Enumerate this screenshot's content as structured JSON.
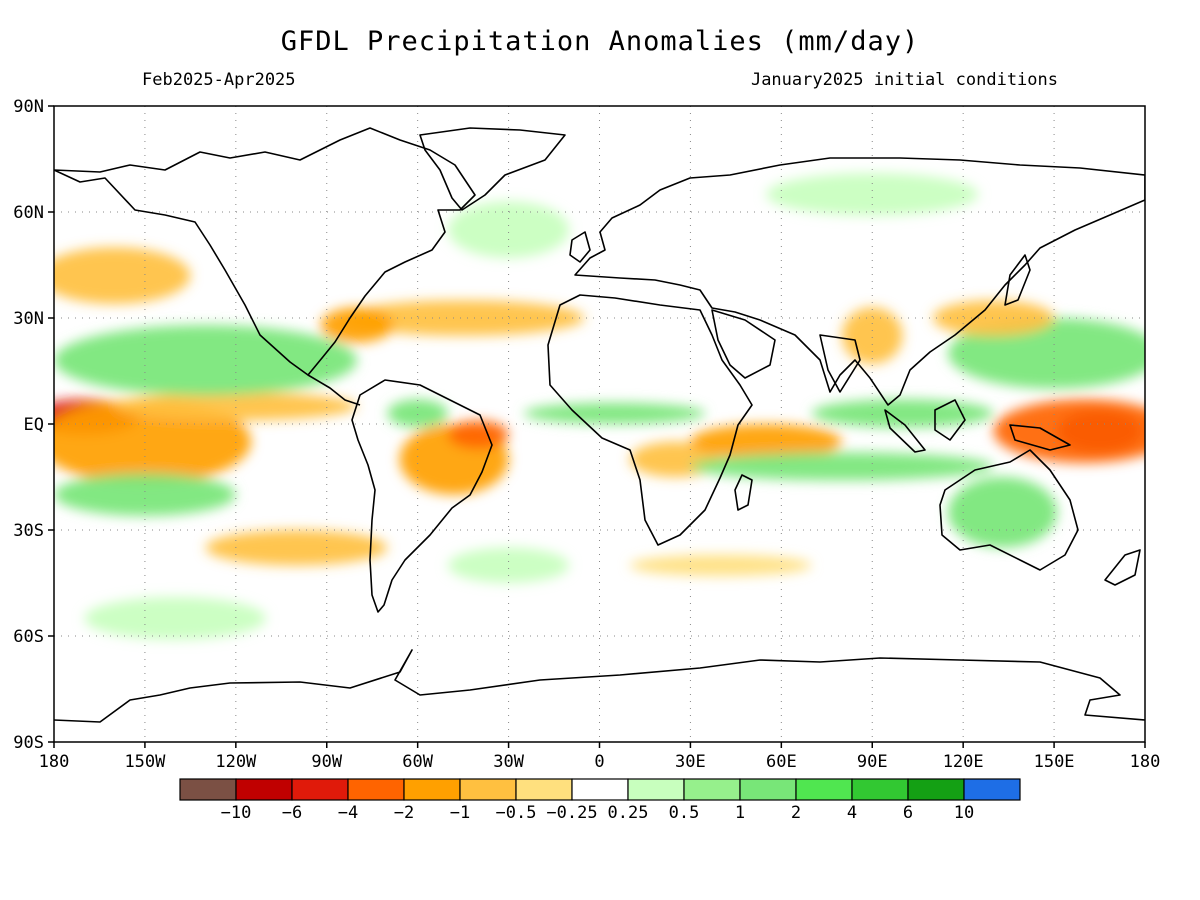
{
  "title": "GFDL Precipitation Anomalies (mm/day)",
  "period": "Feb2025-Apr2025",
  "initial_conditions": "January2025 initial conditions",
  "map": {
    "projection": "equirectangular",
    "lon_range": [
      -180,
      180
    ],
    "lat_range": [
      -90,
      90
    ],
    "grid": "dotted every 30 degrees",
    "lat_labels": [
      "90N",
      "60N",
      "30N",
      "EQ",
      "30S",
      "60S",
      "90S"
    ],
    "lon_labels": [
      "180",
      "150W",
      "120W",
      "90W",
      "60W",
      "30W",
      "0",
      "30E",
      "60E",
      "90E",
      "120E",
      "150E",
      "180"
    ]
  },
  "colorbar": {
    "colors": [
      "#7b5044",
      "#c00000",
      "#e01a0a",
      "#ff6400",
      "#ffa000",
      "#ffc040",
      "#ffe07e",
      "#ffffff",
      "#c8ffbe",
      "#96f08c",
      "#78e678",
      "#50e650",
      "#32c832",
      "#14a014",
      "#1e6ee6"
    ],
    "labels": [
      "-10",
      "-6",
      "-4",
      "-2",
      "-1",
      "-0.5",
      "-0.25",
      "0.25",
      "0.5",
      "1",
      "2",
      "4",
      "6",
      "10"
    ]
  },
  "anomaly_regions": [
    {
      "lon": 165,
      "lat": -2,
      "rx": 14,
      "ry": 6,
      "value": -6
    },
    {
      "lon": 160,
      "lat": -2,
      "rx": 30,
      "ry": 9,
      "value": -2
    },
    {
      "lon": -170,
      "lat": 2,
      "rx": 18,
      "ry": 5,
      "value": -4
    },
    {
      "lon": -150,
      "lat": -5,
      "rx": 35,
      "ry": 12,
      "value": -1.5
    },
    {
      "lon": -120,
      "lat": 5,
      "rx": 40,
      "ry": 4,
      "value": -0.75
    },
    {
      "lon": -130,
      "lat": 18,
      "rx": 50,
      "ry": 10,
      "value": 1.5
    },
    {
      "lon": -150,
      "lat": -20,
      "rx": 30,
      "ry": 6,
      "value": 1.5
    },
    {
      "lon": -100,
      "lat": -35,
      "rx": 30,
      "ry": 5,
      "value": -0.75
    },
    {
      "lon": -140,
      "lat": -55,
      "rx": 30,
      "ry": 6,
      "value": 0.4
    },
    {
      "lon": -160,
      "lat": 42,
      "rx": 25,
      "ry": 8,
      "value": -0.75
    },
    {
      "lon": -48,
      "lat": -10,
      "rx": 18,
      "ry": 10,
      "value": -1.2
    },
    {
      "lon": -40,
      "lat": -3,
      "rx": 10,
      "ry": 4,
      "value": -2
    },
    {
      "lon": -60,
      "lat": 3,
      "rx": 10,
      "ry": 4,
      "value": 1.2
    },
    {
      "lon": -45,
      "lat": 30,
      "rx": 40,
      "ry": 5,
      "value": -0.75
    },
    {
      "lon": -80,
      "lat": 28,
      "rx": 12,
      "ry": 5,
      "value": -1.2
    },
    {
      "lon": -30,
      "lat": 55,
      "rx": 20,
      "ry": 8,
      "value": 0.5
    },
    {
      "lon": 5,
      "lat": 3,
      "rx": 30,
      "ry": 3,
      "value": 1.2
    },
    {
      "lon": 25,
      "lat": -10,
      "rx": 15,
      "ry": 5,
      "value": -0.75
    },
    {
      "lon": 55,
      "lat": -5,
      "rx": 25,
      "ry": 5,
      "value": -1.5
    },
    {
      "lon": 100,
      "lat": 3,
      "rx": 30,
      "ry": 4,
      "value": 1.5
    },
    {
      "lon": 80,
      "lat": -12,
      "rx": 50,
      "ry": 4,
      "value": 1.2
    },
    {
      "lon": 150,
      "lat": 20,
      "rx": 35,
      "ry": 10,
      "value": 1.2
    },
    {
      "lon": 133,
      "lat": -25,
      "rx": 18,
      "ry": 10,
      "value": 1.2
    },
    {
      "lon": 130,
      "lat": 30,
      "rx": 20,
      "ry": 5,
      "value": -0.75
    },
    {
      "lon": 90,
      "lat": 25,
      "rx": 10,
      "ry": 8,
      "value": -0.75
    },
    {
      "lon": 40,
      "lat": -40,
      "rx": 30,
      "ry": 3,
      "value": -0.4
    },
    {
      "lon": 90,
      "lat": 65,
      "rx": 35,
      "ry": 6,
      "value": 0.5
    },
    {
      "lon": -30,
      "lat": -40,
      "rx": 20,
      "ry": 5,
      "value": 0.5
    }
  ]
}
